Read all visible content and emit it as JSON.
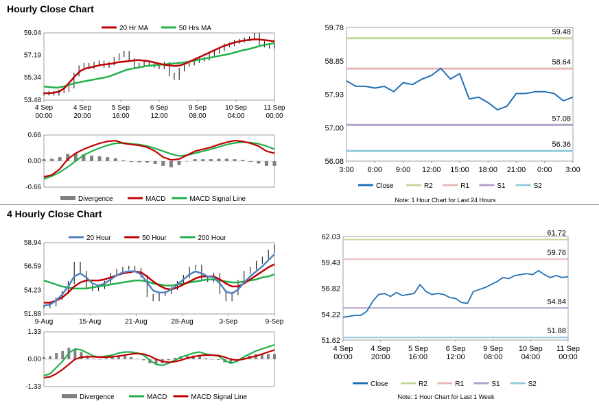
{
  "sections": {
    "hourly_title": "Hourly Close Chart",
    "four_hourly_title": "4 Hourly Close Chart"
  },
  "colors": {
    "price": "#000000",
    "ma_red": "#c00000",
    "ma_green": "#21b04a",
    "ma_blue": "#4f81bd",
    "close_line": "#1f6fb4",
    "r2": "#c3d69b",
    "r1": "#e6b9b8",
    "s1": "#b3a2c7",
    "s2": "#93cddd",
    "divergence": "#808080"
  },
  "chart_data": [
    {
      "id": "hourly-price",
      "type": "line",
      "legend": [
        "20 Hr MA",
        "50 Hrs MA"
      ],
      "y_ticks": [
        "59.04",
        "57.19",
        "55.34",
        "53.48"
      ],
      "ylim": [
        53.48,
        59.04
      ],
      "x_ticks": [
        [
          "4 Sep",
          "00:00"
        ],
        [
          "4 Sep",
          "20:00"
        ],
        [
          "5 Sep",
          "16:00"
        ],
        [
          "6 Sep",
          "12:00"
        ],
        [
          "9 Sep",
          "08:00"
        ],
        [
          "10 Sep",
          "04:00"
        ],
        [
          "11 Sep",
          "00:00"
        ]
      ],
      "series": [
        {
          "name": "Price",
          "values": [
            54.0,
            54.1,
            54.0,
            54.2,
            54.3,
            54.6,
            55.6,
            56.2,
            56.4,
            56.2,
            56.5,
            56.6,
            56.3,
            56.5,
            56.9,
            57.2,
            57.4,
            56.8,
            56.3,
            56.4,
            56.6,
            56.5,
            56.3,
            56.2,
            56.5,
            55.6,
            55.3,
            56.0,
            56.4,
            56.5,
            56.7,
            56.8,
            56.9,
            57.3,
            57.5,
            57.7,
            58.0,
            58.1,
            58.3,
            58.4,
            58.5,
            58.6,
            58.9,
            58.2,
            58.0,
            57.9,
            58.1
          ]
        },
        {
          "name": "20 Hr MA",
          "values": [
            54.05,
            54.05,
            54.1,
            54.2,
            54.5,
            55.0,
            55.5,
            55.9,
            56.1,
            56.2,
            56.3,
            56.4,
            56.45,
            56.5,
            56.6,
            56.65,
            56.7,
            56.75,
            56.8,
            56.75,
            56.7,
            56.6,
            56.5,
            56.4,
            56.35,
            56.3,
            56.35,
            56.5,
            56.7,
            56.9,
            57.1,
            57.3,
            57.5,
            57.7,
            57.9,
            58.05,
            58.2,
            58.3,
            58.4,
            58.45,
            58.5,
            58.5,
            58.45,
            58.4,
            58.35
          ]
        },
        {
          "name": "50 Hrs MA",
          "values": [
            54.6,
            54.55,
            54.5,
            54.6,
            54.75,
            54.9,
            55.0,
            55.1,
            55.2,
            55.3,
            55.4,
            55.6,
            55.8,
            56.0,
            56.1,
            56.2,
            56.3,
            56.35,
            56.4,
            56.45,
            56.5,
            56.55,
            56.6,
            56.7,
            56.8,
            56.9,
            57.0,
            57.1,
            57.2,
            57.3,
            57.45,
            57.6,
            57.7,
            57.85,
            58.0,
            58.1,
            58.2
          ]
        }
      ]
    },
    {
      "id": "hourly-macd",
      "type": "line",
      "legend": [
        "Divergence",
        "MACD",
        "MACD Signal Line"
      ],
      "y_ticks": [
        "0.66",
        "0.00",
        "-0.66"
      ],
      "ylim": [
        -0.66,
        0.66
      ],
      "series": [
        {
          "name": "MACD",
          "values": [
            -0.4,
            -0.35,
            -0.2,
            0.05,
            0.2,
            0.3,
            0.38,
            0.45,
            0.5,
            0.52,
            0.45,
            0.42,
            0.4,
            0.35,
            0.25,
            0.1,
            0.03,
            0.05,
            0.15,
            0.25,
            0.3,
            0.35,
            0.42,
            0.48,
            0.52,
            0.5,
            0.45,
            0.38,
            0.25,
            0.2
          ]
        },
        {
          "name": "MACD Signal Line",
          "values": [
            -0.45,
            -0.38,
            -0.28,
            -0.15,
            0.0,
            0.15,
            0.25,
            0.33,
            0.4,
            0.45,
            0.46,
            0.44,
            0.42,
            0.38,
            0.32,
            0.25,
            0.18,
            0.13,
            0.15,
            0.2,
            0.25,
            0.3,
            0.36,
            0.42,
            0.46,
            0.48,
            0.47,
            0.44,
            0.38,
            0.3
          ]
        },
        {
          "name": "Divergence",
          "values": [
            0.05,
            0.06,
            0.1,
            0.18,
            0.2,
            0.17,
            0.14,
            0.12,
            0.1,
            0.07,
            0.02,
            -0.02,
            -0.03,
            -0.04,
            -0.07,
            -0.12,
            -0.16,
            -0.1,
            0.0,
            0.05,
            0.05,
            0.05,
            0.06,
            0.06,
            0.05,
            0.03,
            -0.02,
            -0.06,
            -0.12,
            -0.12
          ]
        }
      ]
    },
    {
      "id": "hourly-levels",
      "type": "line",
      "y_ticks": [
        "59.78",
        "58.85",
        "57.93",
        "57.00",
        "56.08"
      ],
      "ylim": [
        56.08,
        59.78
      ],
      "x_ticks": [
        "3:00",
        "6:00",
        "9:00",
        "12:00",
        "15:00",
        "18:00",
        "21:00",
        "0:00",
        "3:00"
      ],
      "level_labels": [
        "59.48",
        "58.64",
        "57.08",
        "56.36"
      ],
      "levels": {
        "R2": 59.48,
        "R1": 58.64,
        "S1": 57.08,
        "S2": 56.36
      },
      "legend": [
        "Close",
        "R2",
        "R1",
        "S1",
        "S2"
      ],
      "note": "Note: 1 Hour Chart for Last 24 Hours",
      "series": [
        {
          "name": "Close",
          "values": [
            58.3,
            58.15,
            58.15,
            58.1,
            58.15,
            58.0,
            58.25,
            58.2,
            58.35,
            58.45,
            58.65,
            58.35,
            58.5,
            57.8,
            57.85,
            57.7,
            57.5,
            57.6,
            57.95,
            57.95,
            58.0,
            58.0,
            57.95,
            57.75,
            57.85
          ]
        }
      ]
    },
    {
      "id": "four-hourly-price",
      "type": "line",
      "legend": [
        "20 Hour",
        "50 Hour",
        "200 Hour"
      ],
      "y_ticks": [
        "58.94",
        "56.59",
        "54.23",
        "51.88"
      ],
      "ylim": [
        51.88,
        58.94
      ],
      "x_ticks": [
        "9-Aug",
        "15-Aug",
        "21-Aug",
        "28-Aug",
        "3-Sep",
        "9-Sep"
      ],
      "series": [
        {
          "name": "Price",
          "values": [
            52.6,
            52.8,
            53.4,
            54.0,
            55.0,
            56.9,
            56.0,
            54.6,
            54.3,
            54.5,
            55.0,
            55.8,
            56.2,
            56.4,
            56.5,
            56.3,
            55.6,
            53.7,
            53.3,
            53.8,
            54.0,
            54.4,
            55.0,
            55.6,
            56.4,
            56.6,
            55.4,
            55.2,
            55.8,
            54.0,
            53.3,
            53.9,
            55.1,
            56.0,
            56.4,
            57.0,
            57.4,
            58.1,
            58.6
          ]
        },
        {
          "name": "20 Hour",
          "values": [
            52.7,
            52.8,
            53.2,
            53.8,
            54.6,
            55.6,
            55.9,
            55.5,
            54.9,
            54.7,
            54.9,
            55.3,
            55.7,
            56.0,
            56.1,
            56.1,
            55.8,
            55.0,
            54.2,
            54.0,
            54.0,
            54.3,
            54.8,
            55.3,
            55.8,
            56.1,
            55.9,
            55.6,
            55.5,
            54.9,
            54.1,
            53.9,
            54.3,
            55.0,
            55.6,
            56.1,
            56.6,
            57.2,
            57.8
          ]
        },
        {
          "name": "50 Hour",
          "values": [
            53.0,
            53.0,
            53.2,
            53.5,
            54.0,
            54.6,
            55.0,
            55.2,
            55.2,
            55.2,
            55.3,
            55.5,
            55.7,
            55.9,
            56.0,
            56.1,
            56.0,
            55.6,
            55.1,
            54.7,
            54.4,
            54.3,
            54.5,
            54.8,
            55.1,
            55.4,
            55.6,
            55.6,
            55.6,
            55.3,
            54.9,
            54.6,
            54.6,
            54.9,
            55.3,
            55.7,
            56.1,
            56.5,
            56.8
          ]
        },
        {
          "name": "200 Hour",
          "values": [
            55.2,
            55.0,
            54.8,
            54.6,
            54.5,
            54.4,
            54.4,
            54.4,
            54.5,
            54.6,
            54.7,
            54.8,
            54.9,
            55.0,
            55.1,
            55.2,
            55.2,
            55.1,
            54.9,
            54.8,
            54.7,
            54.7,
            54.8,
            54.9,
            55.0,
            55.1,
            55.2,
            55.3,
            55.3,
            55.2,
            55.1,
            55.0,
            55.0,
            55.1,
            55.2,
            55.3,
            55.5,
            55.6,
            55.8
          ]
        }
      ]
    },
    {
      "id": "four-hourly-macd",
      "type": "line",
      "legend": [
        "Divergence",
        "MACD",
        "MACD Signal Line"
      ],
      "y_ticks": [
        "1.33",
        "0.00",
        "-1.33"
      ],
      "ylim": [
        -1.33,
        1.33
      ],
      "series": [
        {
          "name": "MACD",
          "values": [
            -0.8,
            -0.7,
            -0.4,
            -0.1,
            0.3,
            0.5,
            0.45,
            0.3,
            0.15,
            0.1,
            0.15,
            0.2,
            0.3,
            0.35,
            0.35,
            0.3,
            0.2,
            -0.05,
            -0.25,
            -0.3,
            -0.2,
            -0.05,
            0.1,
            0.2,
            0.3,
            0.35,
            0.25,
            0.2,
            0.15,
            -0.05,
            -0.2,
            -0.1,
            0.1,
            0.25,
            0.4,
            0.5,
            0.6,
            0.7
          ]
        },
        {
          "name": "MACD Signal Line",
          "values": [
            -0.9,
            -0.85,
            -0.7,
            -0.5,
            -0.25,
            0.0,
            0.1,
            0.12,
            0.12,
            0.1,
            0.1,
            0.12,
            0.15,
            0.2,
            0.25,
            0.28,
            0.25,
            0.15,
            0.0,
            -0.1,
            -0.15,
            -0.12,
            -0.05,
            0.05,
            0.12,
            0.18,
            0.2,
            0.2,
            0.18,
            0.1,
            0.0,
            -0.05,
            0.0,
            0.08,
            0.15,
            0.25,
            0.35,
            0.45
          ]
        },
        {
          "name": "Divergence",
          "values": [
            0.1,
            0.15,
            0.3,
            0.4,
            0.55,
            0.5,
            0.35,
            0.18,
            0.03,
            0.0,
            0.05,
            0.08,
            0.15,
            0.15,
            0.1,
            0.02,
            -0.05,
            -0.2,
            -0.25,
            -0.2,
            -0.05,
            0.07,
            0.15,
            0.15,
            0.18,
            0.17,
            0.05,
            0.0,
            -0.03,
            -0.15,
            -0.2,
            -0.05,
            0.1,
            0.17,
            0.25,
            0.25,
            0.25,
            0.25
          ]
        }
      ]
    },
    {
      "id": "four-hourly-levels",
      "type": "line",
      "y_ticks": [
        "62.03",
        "59.43",
        "56.82",
        "54.22",
        "51.62"
      ],
      "ylim": [
        51.62,
        62.03
      ],
      "x_ticks": [
        [
          "4 Sep",
          "00:00"
        ],
        [
          "4 Sep",
          "20:00"
        ],
        [
          "5 Sep",
          "16:00"
        ],
        [
          "6 Sep",
          "12:00"
        ],
        [
          "9 Sep",
          "08:00"
        ],
        [
          "10 Sep",
          "04:00"
        ],
        [
          "11 Sep",
          "00:00"
        ]
      ],
      "level_labels": [
        "61.72",
        "59.76",
        "54.84",
        "51.88"
      ],
      "levels": {
        "R2": 61.72,
        "R1": 59.76,
        "S1": 54.84,
        "S2": 51.88
      },
      "legend": [
        "Close",
        "R2",
        "R1",
        "S1",
        "S2"
      ],
      "note": "Note: 1 Hour Chart for Last 1 Week",
      "series": [
        {
          "name": "Close",
          "values": [
            53.9,
            54.0,
            54.1,
            54.1,
            54.5,
            55.5,
            56.2,
            56.3,
            56.0,
            56.4,
            56.1,
            56.2,
            56.3,
            57.2,
            56.5,
            56.2,
            56.3,
            56.2,
            55.9,
            55.8,
            55.4,
            55.3,
            56.5,
            56.7,
            56.9,
            57.2,
            57.5,
            57.9,
            57.8,
            58.1,
            58.2,
            58.3,
            58.2,
            58.6,
            58.2,
            57.9,
            58.1,
            57.9,
            58.0
          ]
        }
      ]
    }
  ]
}
